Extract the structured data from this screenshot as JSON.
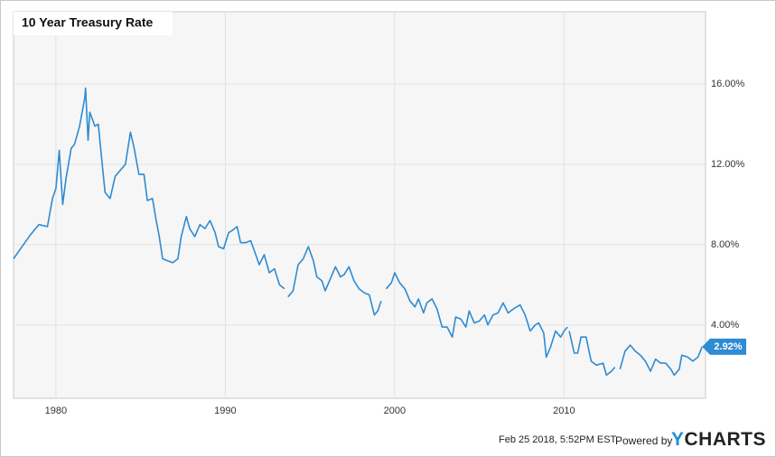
{
  "chart_data": {
    "type": "line",
    "title": "10 Year Treasury Rate",
    "xlim": [
      1977.5,
      2018.35
    ],
    "xticks": [
      1980,
      1990,
      2000,
      2010
    ],
    "ylim": [
      0.35,
      19.6
    ],
    "yticks": [
      {
        "value": 4,
        "label": "4.00%"
      },
      {
        "value": 8,
        "label": "8.00%"
      },
      {
        "value": 12,
        "label": "12.00%"
      },
      {
        "value": 16,
        "label": "16.00%"
      }
    ],
    "grid": true,
    "series": [
      {
        "name": "10 Year Treasury Rate",
        "color": "#2f8bd2",
        "x": [
          1977.5,
          1978.0,
          1978.5,
          1979.0,
          1979.5,
          1979.8,
          1980.0,
          1980.2,
          1980.4,
          1980.6,
          1980.9,
          1981.1,
          1981.4,
          1981.7,
          1981.75,
          1981.9,
          1982.0,
          1982.3,
          1982.5,
          1982.7,
          1982.9,
          1983.2,
          1983.5,
          1983.8,
          1984.1,
          1984.4,
          1984.6,
          1984.9,
          1985.2,
          1985.4,
          1985.7,
          1985.9,
          1986.1,
          1986.3,
          1986.6,
          1986.9,
          1987.2,
          1987.4,
          1987.7,
          1987.9,
          1988.2,
          1988.5,
          1988.8,
          1989.1,
          1989.4,
          1989.6,
          1989.9,
          1990.2,
          1990.4,
          1990.7,
          1990.9,
          1991.2,
          1991.5,
          1991.8,
          1992.0,
          1992.3,
          1992.6,
          1992.9,
          1993.2,
          1993.5,
          1993.6,
          1993.7,
          1994.0,
          1994.3,
          1994.6,
          1994.9,
          1995.2,
          1995.4,
          1995.7,
          1995.9,
          1996.2,
          1996.5,
          1996.8,
          1997.0,
          1997.3,
          1997.6,
          1997.9,
          1998.2,
          1998.5,
          1998.8,
          1999.0,
          1999.2,
          1999.35,
          1999.5,
          1999.8,
          2000.0,
          2000.3,
          2000.6,
          2000.9,
          2001.2,
          2001.4,
          2001.7,
          2001.9,
          2002.2,
          2002.5,
          2002.8,
          2003.1,
          2003.4,
          2003.6,
          2003.9,
          2004.2,
          2004.4,
          2004.7,
          2005.0,
          2005.3,
          2005.5,
          2005.8,
          2006.1,
          2006.4,
          2006.7,
          2007.0,
          2007.4,
          2007.7,
          2008.0,
          2008.3,
          2008.5,
          2008.8,
          2008.95,
          2009.2,
          2009.5,
          2009.8,
          2010.0,
          2010.2,
          2010.25,
          2010.3,
          2010.6,
          2010.8,
          2011.0,
          2011.3,
          2011.6,
          2011.9,
          2012.3,
          2012.5,
          2012.8,
          2013.0,
          2013.15,
          2013.3,
          2013.6,
          2013.9,
          2014.2,
          2014.5,
          2014.8,
          2015.1,
          2015.4,
          2015.7,
          2016.0,
          2016.3,
          2016.5,
          2016.8,
          2016.95,
          2017.3,
          2017.6,
          2017.9,
          2018.15
        ],
        "values": [
          7.3,
          7.9,
          8.5,
          9.0,
          8.9,
          10.3,
          10.8,
          12.7,
          10.0,
          11.3,
          12.8,
          13.0,
          13.9,
          15.3,
          15.8,
          13.2,
          14.6,
          13.9,
          14.0,
          12.3,
          10.6,
          10.3,
          11.4,
          11.7,
          12.0,
          13.6,
          12.9,
          11.5,
          11.5,
          10.2,
          10.3,
          9.3,
          8.4,
          7.3,
          7.2,
          7.1,
          7.3,
          8.4,
          9.4,
          8.8,
          8.4,
          9.0,
          8.8,
          9.2,
          8.6,
          7.9,
          7.8,
          8.6,
          8.7,
          8.9,
          8.1,
          8.1,
          8.2,
          7.5,
          7.0,
          7.5,
          6.6,
          6.8,
          6.0,
          5.8,
          null,
          5.4,
          5.7,
          7.0,
          7.3,
          7.9,
          7.2,
          6.4,
          6.2,
          5.7,
          6.3,
          6.9,
          6.4,
          6.5,
          6.9,
          6.2,
          5.8,
          5.6,
          5.5,
          4.5,
          4.7,
          5.2,
          null,
          5.8,
          6.1,
          6.6,
          6.1,
          5.8,
          5.2,
          4.9,
          5.3,
          4.6,
          5.1,
          5.3,
          4.8,
          3.9,
          3.9,
          3.4,
          4.4,
          4.3,
          3.9,
          4.7,
          4.1,
          4.2,
          4.5,
          4.0,
          4.5,
          4.6,
          5.1,
          4.6,
          4.8,
          5.0,
          4.5,
          3.7,
          4.0,
          4.1,
          3.6,
          2.4,
          2.9,
          3.7,
          3.4,
          3.7,
          3.9,
          null,
          3.7,
          2.6,
          2.6,
          3.4,
          3.4,
          2.2,
          2.0,
          2.1,
          1.5,
          1.7,
          1.9,
          null,
          1.8,
          2.7,
          3.0,
          2.7,
          2.5,
          2.2,
          1.7,
          2.3,
          2.1,
          2.1,
          1.8,
          1.5,
          1.8,
          2.5,
          2.4,
          2.2,
          2.4,
          2.92
        ]
      }
    ],
    "annotations": [
      {
        "x": 2018.15,
        "y": 2.92,
        "label": "2.92%"
      }
    ]
  },
  "footer": {
    "timestamp": "Feb 25 2018, 5:52PM EST.",
    "powered_by": "Powered by",
    "logo": "YCHARTS"
  }
}
